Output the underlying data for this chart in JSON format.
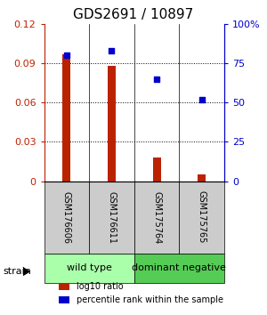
{
  "title": "GDS2691 / 10897",
  "samples": [
    "GSM176606",
    "GSM176611",
    "GSM175764",
    "GSM175765"
  ],
  "log10_ratio": [
    0.097,
    0.088,
    0.018,
    0.005
  ],
  "percentile_rank": [
    80,
    83,
    65,
    52
  ],
  "groups": [
    {
      "label": "wild type",
      "indices": [
        0,
        1
      ],
      "color": "#aaffaa"
    },
    {
      "label": "dominant negative",
      "indices": [
        2,
        3
      ],
      "color": "#55cc55"
    }
  ],
  "ylim_left": [
    0,
    0.12
  ],
  "ylim_right": [
    0,
    100
  ],
  "yticks_left": [
    0,
    0.03,
    0.06,
    0.09,
    0.12
  ],
  "yticks_right": [
    0,
    25,
    50,
    75,
    100
  ],
  "ytick_labels_left": [
    "0",
    "0.03",
    "0.06",
    "0.09",
    "0.12"
  ],
  "ytick_labels_right": [
    "0",
    "25",
    "50",
    "75",
    "100%"
  ],
  "bar_color": "#bb2200",
  "dot_color": "#0000cc",
  "gray_box_color": "#cccccc",
  "title_fontsize": 11,
  "background_color": "#ffffff",
  "legend_red_label": "log10 ratio",
  "legend_blue_label": "percentile rank within the sample",
  "strain_label": "strain",
  "bar_width": 0.18
}
